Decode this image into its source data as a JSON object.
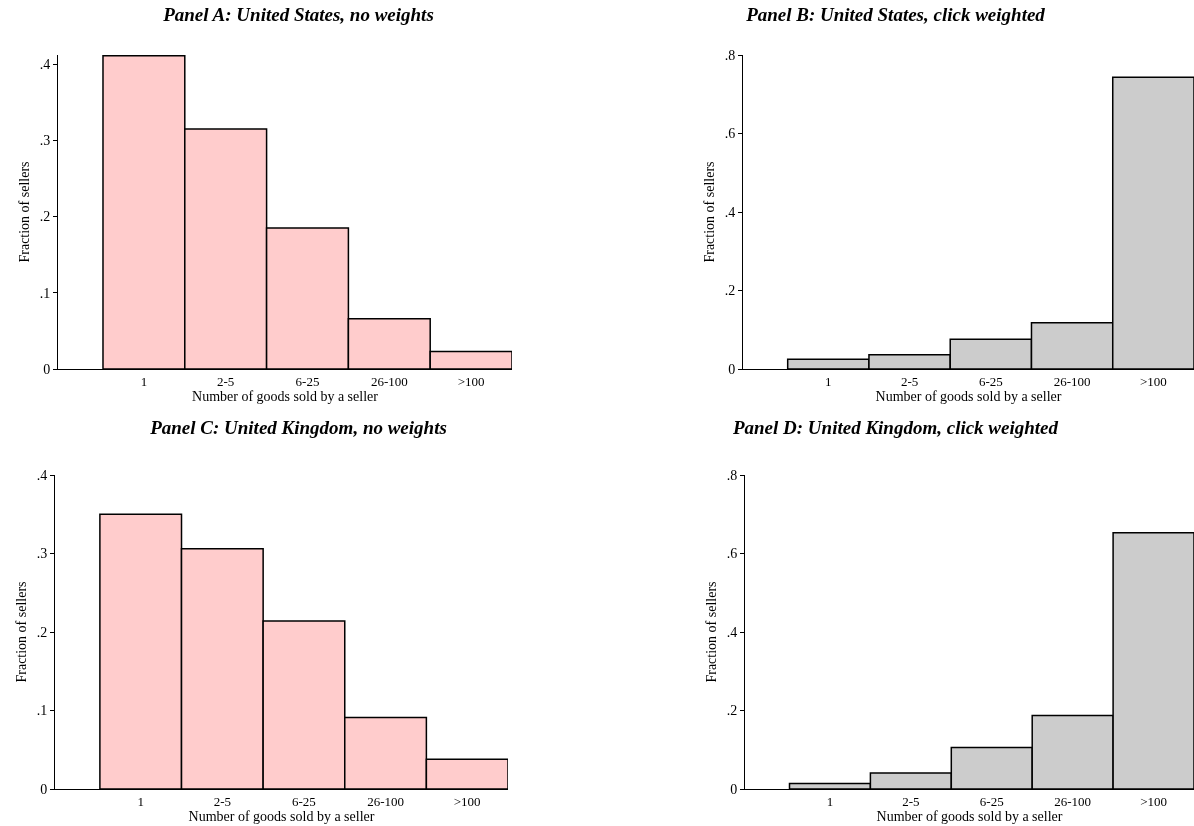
{
  "chart_data": [
    {
      "type": "bar",
      "title": "Panel A: United States, no weights",
      "xlabel": "Number of goods sold by a seller",
      "ylabel": "Fraction of sellers",
      "categories": [
        "1",
        "2-5",
        "6-25",
        "26-100",
        ">100"
      ],
      "values": [
        0.411,
        0.315,
        0.185,
        0.066,
        0.023
      ],
      "color": "#ffcccc",
      "ylim": [
        0,
        0.412
      ],
      "yticks": [
        {
          "value": 0,
          "label": "0"
        },
        {
          "value": 0.1,
          "label": ".1"
        },
        {
          "value": 0.2,
          "label": ".2"
        },
        {
          "value": 0.3,
          "label": ".3"
        },
        {
          "value": 0.4,
          "label": ".4"
        }
      ]
    },
    {
      "type": "bar",
      "title": "Panel B: United States, click weighted",
      "xlabel": "Number of goods sold by a seller",
      "ylabel": "Fraction of sellers",
      "categories": [
        "1",
        "2-5",
        "6-25",
        "26-100",
        ">100"
      ],
      "values": [
        0.025,
        0.036,
        0.076,
        0.118,
        0.743
      ],
      "color": "#cccccc",
      "ylim": [
        0,
        0.8
      ],
      "yticks": [
        {
          "value": 0,
          "label": "0"
        },
        {
          "value": 0.2,
          "label": ".2"
        },
        {
          "value": 0.4,
          "label": ".4"
        },
        {
          "value": 0.6,
          "label": ".6"
        },
        {
          "value": 0.8,
          "label": ".8"
        }
      ]
    },
    {
      "type": "bar",
      "title": "Panel C: United Kingdom, no weights",
      "xlabel": "Number of goods sold by a seller",
      "ylabel": "Fraction of sellers",
      "categories": [
        "1",
        "2-5",
        "6-25",
        "26-100",
        ">100"
      ],
      "values": [
        0.35,
        0.306,
        0.214,
        0.091,
        0.038
      ],
      "color": "#ffcccc",
      "ylim": [
        0,
        0.4
      ],
      "yticks": [
        {
          "value": 0,
          "label": "0"
        },
        {
          "value": 0.1,
          "label": ".1"
        },
        {
          "value": 0.2,
          "label": ".2"
        },
        {
          "value": 0.3,
          "label": ".3"
        },
        {
          "value": 0.4,
          "label": ".4"
        }
      ]
    },
    {
      "type": "bar",
      "title": "Panel D: United Kingdom, click weighted",
      "xlabel": "Number of goods sold by a seller",
      "ylabel": "Fraction of sellers",
      "categories": [
        "1",
        "2-5",
        "6-25",
        "26-100",
        ">100"
      ],
      "values": [
        0.014,
        0.041,
        0.106,
        0.187,
        0.653
      ],
      "color": "#cccccc",
      "ylim": [
        0,
        0.8
      ],
      "yticks": [
        {
          "value": 0,
          "label": "0"
        },
        {
          "value": 0.2,
          "label": ".2"
        },
        {
          "value": 0.4,
          "label": ".4"
        },
        {
          "value": 0.6,
          "label": ".6"
        },
        {
          "value": 0.8,
          "label": ".8"
        }
      ]
    }
  ]
}
